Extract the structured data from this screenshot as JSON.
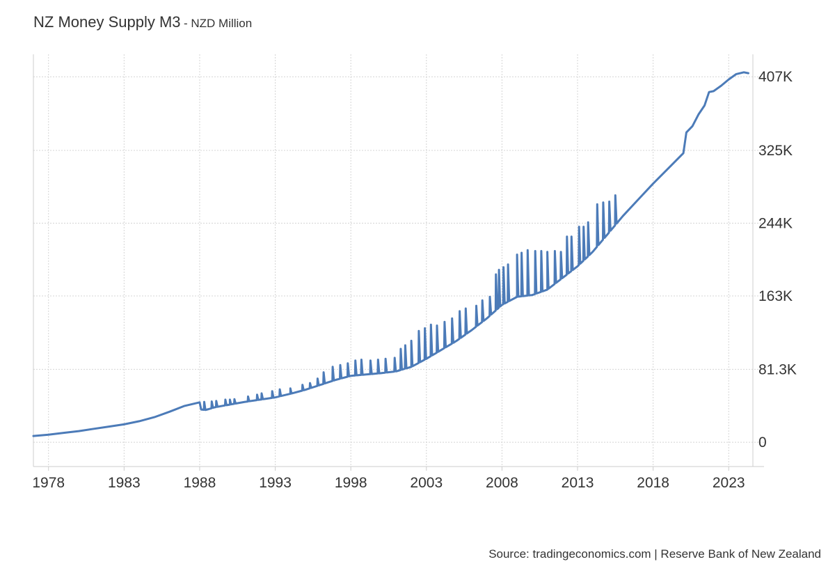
{
  "chart_data": {
    "type": "line",
    "title": "NZ Money Supply M3",
    "subtitle": "NZD Million",
    "source": "Source: tradingeconomics.com | Reserve Bank of New Zealand",
    "xlabel": "",
    "ylabel": "",
    "xlim": [
      1977.0,
      2024.6
    ],
    "ylim": [
      -27000,
      432000
    ],
    "y_ticks": [
      0,
      81300,
      163000,
      244000,
      325000,
      407000
    ],
    "y_tick_labels": [
      "0",
      "81.3K",
      "163K",
      "244K",
      "325K",
      "407K"
    ],
    "x_ticks": [
      1978,
      1983,
      1988,
      1993,
      1998,
      2003,
      2008,
      2013,
      2018,
      2023
    ],
    "x_tick_labels": [
      "1978",
      "1983",
      "1988",
      "1993",
      "1998",
      "2003",
      "2008",
      "2013",
      "2018",
      "2023"
    ],
    "grid": true,
    "y_axis_position": "right",
    "series": [
      {
        "name": "",
        "color": "#4c7bb8",
        "x": [
          1977.0,
          1978.0,
          1979.0,
          1980.0,
          1981.0,
          1982.0,
          1983.0,
          1984.0,
          1985.0,
          1986.0,
          1987.0,
          1988.0,
          1988.1,
          1988.4,
          1988.6,
          1989.0,
          1990.0,
          1991.0,
          1992.0,
          1993.0,
          1994.0,
          1995.0,
          1996.0,
          1997.0,
          1998.0,
          1999.0,
          2000.0,
          2001.0,
          2002.0,
          2003.0,
          2004.0,
          2005.0,
          2006.0,
          2007.0,
          2008.0,
          2009.0,
          2010.0,
          2011.0,
          2012.0,
          2013.0,
          2014.0,
          2015.0,
          2016.0,
          2017.0,
          2018.0,
          2019.0,
          2020.0,
          2020.2,
          2020.6,
          2021.0,
          2021.4,
          2021.7,
          2022.0,
          2022.5,
          2023.0,
          2023.5,
          2024.0,
          2024.3
        ],
        "values": [
          7000,
          8500,
          10500,
          12500,
          15000,
          17500,
          20000,
          23500,
          28000,
          34000,
          40500,
          44500,
          36500,
          36000,
          37000,
          39000,
          42000,
          45000,
          47500,
          50000,
          54000,
          58500,
          64000,
          69500,
          74000,
          75500,
          77000,
          79000,
          84000,
          93000,
          103000,
          113000,
          125000,
          138000,
          153000,
          162000,
          164000,
          170000,
          183000,
          196000,
          212000,
          232000,
          252000,
          270000,
          288000,
          305000,
          322000,
          345000,
          352000,
          365000,
          375000,
          390000,
          391000,
          397000,
          404000,
          410000,
          412000,
          411000
        ]
      }
    ],
    "spikes": [
      {
        "x": 1988.3,
        "value": 45000
      },
      {
        "x": 1988.8,
        "value": 45500
      },
      {
        "x": 1989.1,
        "value": 46000
      },
      {
        "x": 1989.7,
        "value": 47500
      },
      {
        "x": 1990.0,
        "value": 47500
      },
      {
        "x": 1990.3,
        "value": 48000
      },
      {
        "x": 1991.2,
        "value": 51000
      },
      {
        "x": 1991.8,
        "value": 53000
      },
      {
        "x": 1992.1,
        "value": 54500
      },
      {
        "x": 1992.8,
        "value": 57000
      },
      {
        "x": 1993.3,
        "value": 59000
      },
      {
        "x": 1994.0,
        "value": 60000
      },
      {
        "x": 1994.8,
        "value": 64000
      },
      {
        "x": 1995.3,
        "value": 66000
      },
      {
        "x": 1995.8,
        "value": 71000
      },
      {
        "x": 1996.2,
        "value": 78000
      },
      {
        "x": 1996.8,
        "value": 84000
      },
      {
        "x": 1997.3,
        "value": 86000
      },
      {
        "x": 1997.8,
        "value": 88000
      },
      {
        "x": 1998.3,
        "value": 91000
      },
      {
        "x": 1998.7,
        "value": 92000
      },
      {
        "x": 1999.3,
        "value": 91000
      },
      {
        "x": 1999.8,
        "value": 92000
      },
      {
        "x": 2000.3,
        "value": 93000
      },
      {
        "x": 2000.9,
        "value": 94000
      },
      {
        "x": 2001.3,
        "value": 104000
      },
      {
        "x": 2001.6,
        "value": 108000
      },
      {
        "x": 2002.0,
        "value": 113000
      },
      {
        "x": 2002.5,
        "value": 124000
      },
      {
        "x": 2002.9,
        "value": 127000
      },
      {
        "x": 2003.3,
        "value": 131000
      },
      {
        "x": 2003.7,
        "value": 130000
      },
      {
        "x": 2004.2,
        "value": 134000
      },
      {
        "x": 2004.7,
        "value": 138000
      },
      {
        "x": 2005.2,
        "value": 146000
      },
      {
        "x": 2005.6,
        "value": 149000
      },
      {
        "x": 2006.3,
        "value": 152000
      },
      {
        "x": 2006.7,
        "value": 158000
      },
      {
        "x": 2007.2,
        "value": 162000
      },
      {
        "x": 2007.6,
        "value": 187000
      },
      {
        "x": 2007.8,
        "value": 192000
      },
      {
        "x": 2008.1,
        "value": 195000
      },
      {
        "x": 2008.4,
        "value": 198000
      },
      {
        "x": 2009.0,
        "value": 209000
      },
      {
        "x": 2009.3,
        "value": 211000
      },
      {
        "x": 2009.7,
        "value": 214000
      },
      {
        "x": 2010.2,
        "value": 213000
      },
      {
        "x": 2010.6,
        "value": 213000
      },
      {
        "x": 2011.0,
        "value": 212000
      },
      {
        "x": 2011.5,
        "value": 213000
      },
      {
        "x": 2011.9,
        "value": 212000
      },
      {
        "x": 2012.3,
        "value": 229000
      },
      {
        "x": 2012.6,
        "value": 229000
      },
      {
        "x": 2013.1,
        "value": 240000
      },
      {
        "x": 2013.4,
        "value": 240000
      },
      {
        "x": 2013.7,
        "value": 245000
      },
      {
        "x": 2014.3,
        "value": 265000
      },
      {
        "x": 2014.7,
        "value": 267000
      },
      {
        "x": 2015.1,
        "value": 268000
      },
      {
        "x": 2015.5,
        "value": 275000
      }
    ]
  }
}
